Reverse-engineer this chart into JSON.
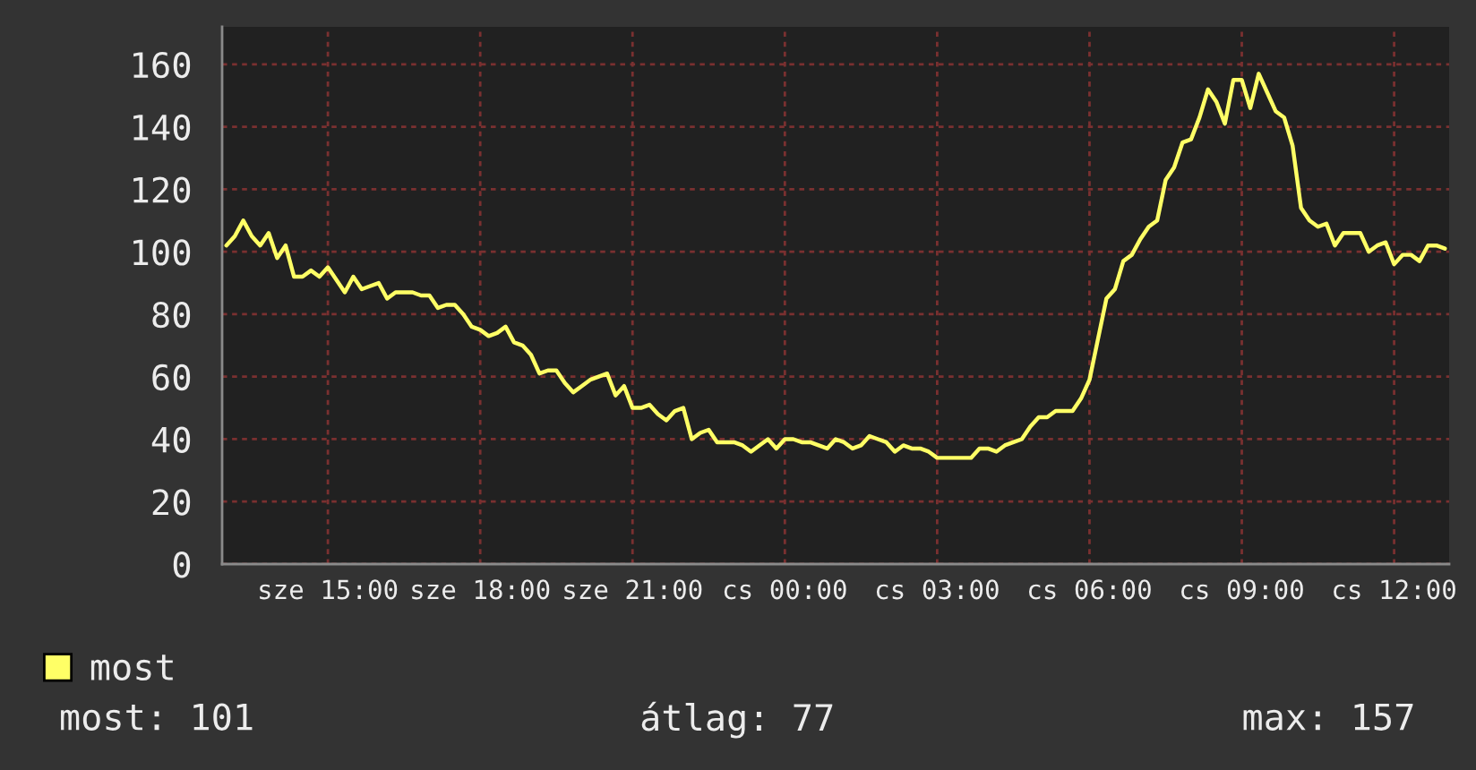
{
  "chart_data": {
    "type": "line",
    "categories": [
      null,
      null,
      null,
      null,
      null,
      null,
      null,
      null,
      null,
      null,
      null,
      null,
      "sze 15:00",
      null,
      null,
      null,
      null,
      null,
      null,
      null,
      null,
      null,
      null,
      null,
      null,
      null,
      null,
      null,
      null,
      null,
      "sze 18:00",
      null,
      null,
      null,
      null,
      null,
      null,
      null,
      null,
      null,
      null,
      null,
      null,
      null,
      null,
      null,
      null,
      null,
      "sze 21:00",
      null,
      null,
      null,
      null,
      null,
      null,
      null,
      null,
      null,
      null,
      null,
      null,
      null,
      null,
      null,
      null,
      null,
      "cs 00:00",
      null,
      null,
      null,
      null,
      null,
      null,
      null,
      null,
      null,
      null,
      null,
      null,
      null,
      null,
      null,
      null,
      null,
      "cs 03:00",
      null,
      null,
      null,
      null,
      null,
      null,
      null,
      null,
      null,
      null,
      null,
      null,
      null,
      null,
      null,
      null,
      null,
      "cs 06:00",
      null,
      null,
      null,
      null,
      null,
      null,
      null,
      null,
      null,
      null,
      null,
      null,
      null,
      null,
      null,
      null,
      null,
      "cs 09:00",
      null,
      null,
      null,
      null,
      null,
      null,
      null,
      null,
      null,
      null,
      null,
      null,
      null,
      null,
      null,
      null,
      null,
      "cs 12:00",
      null,
      null,
      null,
      null,
      null,
      null
    ],
    "series": [
      {
        "name": "most",
        "color": "#ffff66",
        "values": [
          102,
          105,
          110,
          105,
          102,
          106,
          98,
          102,
          92,
          92,
          94,
          92,
          95,
          91,
          87,
          92,
          88,
          89,
          90,
          85,
          87,
          87,
          87,
          86,
          86,
          82,
          83,
          83,
          80,
          76,
          75,
          73,
          74,
          76,
          71,
          70,
          67,
          61,
          62,
          62,
          58,
          55,
          57,
          59,
          60,
          61,
          54,
          57,
          50,
          50,
          51,
          48,
          46,
          49,
          50,
          40,
          42,
          43,
          39,
          39,
          39,
          38,
          36,
          38,
          40,
          37,
          40,
          40,
          39,
          39,
          38,
          37,
          40,
          39,
          37,
          38,
          41,
          40,
          39,
          36,
          38,
          37,
          37,
          36,
          34,
          34,
          34,
          34,
          34,
          37,
          37,
          36,
          38,
          39,
          40,
          44,
          47,
          47,
          49,
          49,
          49,
          53,
          59,
          72,
          85,
          88,
          97,
          99,
          104,
          108,
          110,
          123,
          127,
          135,
          136,
          143,
          152,
          148,
          141,
          155,
          155,
          146,
          157,
          151,
          145,
          143,
          134,
          114,
          110,
          108,
          109,
          102,
          106,
          106,
          106,
          100,
          102,
          103,
          96,
          99,
          99,
          97,
          102,
          102,
          101
        ]
      }
    ],
    "ylim": [
      0,
      172
    ],
    "yticks": [
      0,
      20,
      40,
      60,
      80,
      100,
      120,
      140,
      160
    ],
    "grid": true,
    "legend": "bottom left",
    "annotations": [
      "most: 101",
      "átlag: 77",
      "max: 157"
    ]
  }
}
